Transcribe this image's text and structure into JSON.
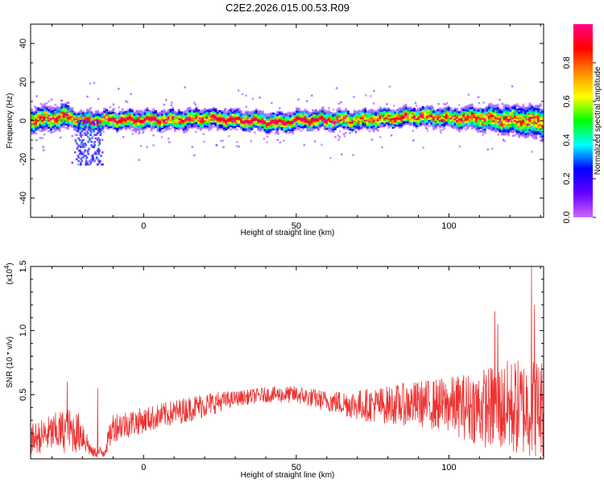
{
  "title": "C2E2.2026.015.00.53.R09",
  "chart_data": [
    {
      "type": "heatmap",
      "name": "spectrogram",
      "xlabel": "Height of straight line (km)",
      "ylabel": "Frequency (Hz)",
      "xlim": [
        -37,
        131
      ],
      "ylim": [
        -50,
        50
      ],
      "xticks": [
        0,
        50,
        100
      ],
      "yticks": [
        -40,
        -20,
        0,
        20,
        40
      ],
      "xtick_labels": [
        "0",
        "50",
        "100"
      ],
      "ytick_labels": [
        "-40",
        "-20",
        "0",
        "20",
        "40"
      ],
      "colorbar": {
        "label": "Normalized spectral amplitude",
        "range": [
          0,
          1
        ],
        "ticks": [
          0.0,
          0.2,
          0.4,
          0.6,
          0.8
        ],
        "tick_labels": [
          "0.0",
          "0.2",
          "0.4",
          "0.6",
          "0.8"
        ],
        "colors": [
          "#cc66ff",
          "#6600ff",
          "#0000ff",
          "#00ffff",
          "#00ff00",
          "#ffff00",
          "#ff8800",
          "#ff0000",
          "#ff0088"
        ]
      },
      "ridge_center_hz": [
        [
          -37,
          0
        ],
        [
          -30,
          1
        ],
        [
          -25,
          2
        ],
        [
          -20,
          -1
        ],
        [
          -15,
          0
        ],
        [
          -10,
          0
        ],
        [
          0,
          0
        ],
        [
          10,
          0
        ],
        [
          20,
          1
        ],
        [
          30,
          0
        ],
        [
          40,
          -1
        ],
        [
          45,
          -1.5
        ],
        [
          50,
          0
        ],
        [
          60,
          0
        ],
        [
          70,
          0
        ],
        [
          80,
          1
        ],
        [
          90,
          2
        ],
        [
          100,
          1
        ],
        [
          110,
          1
        ],
        [
          120,
          0
        ],
        [
          131,
          -1
        ]
      ],
      "features": [
        {
          "x_start": -22,
          "x_end": -14,
          "freq_min": -23,
          "freq_max": 0,
          "note": "downward streak"
        }
      ]
    },
    {
      "type": "line",
      "name": "snr",
      "xlabel": "Height of straight line (km)",
      "ylabel": "SNR (10 * v/v)",
      "ylabel_extra": "(x10",
      "ylabel_exp": "4",
      "ylabel_close": ")",
      "xlim": [
        -37,
        131
      ],
      "ylim": [
        0,
        1.5
      ],
      "xticks": [
        0,
        50,
        100
      ],
      "yticks": [
        0.5,
        1.0,
        1.5
      ],
      "xtick_labels": [
        "0",
        "50",
        "100"
      ],
      "ytick_labels": [
        "0.5",
        "1.0",
        "1.5"
      ],
      "color": "#ee3333",
      "envelope": [
        {
          "x": -37,
          "mean": 0.15,
          "spread": 0.12
        },
        {
          "x": -30,
          "mean": 0.2,
          "spread": 0.15
        },
        {
          "x": -25,
          "mean": 0.22,
          "spread": 0.18
        },
        {
          "x": -20,
          "mean": 0.2,
          "spread": 0.15
        },
        {
          "x": -17,
          "mean": 0.05,
          "spread": 0.04
        },
        {
          "x": -13,
          "mean": 0.05,
          "spread": 0.05
        },
        {
          "x": -10,
          "mean": 0.25,
          "spread": 0.12
        },
        {
          "x": 0,
          "mean": 0.3,
          "spread": 0.1
        },
        {
          "x": 10,
          "mean": 0.36,
          "spread": 0.1
        },
        {
          "x": 20,
          "mean": 0.42,
          "spread": 0.1
        },
        {
          "x": 30,
          "mean": 0.47,
          "spread": 0.06
        },
        {
          "x": 40,
          "mean": 0.5,
          "spread": 0.06
        },
        {
          "x": 50,
          "mean": 0.5,
          "spread": 0.07
        },
        {
          "x": 60,
          "mean": 0.45,
          "spread": 0.08
        },
        {
          "x": 70,
          "mean": 0.42,
          "spread": 0.12
        },
        {
          "x": 80,
          "mean": 0.42,
          "spread": 0.15
        },
        {
          "x": 90,
          "mean": 0.43,
          "spread": 0.18
        },
        {
          "x": 100,
          "mean": 0.42,
          "spread": 0.22
        },
        {
          "x": 110,
          "mean": 0.4,
          "spread": 0.3
        },
        {
          "x": 120,
          "mean": 0.4,
          "spread": 0.38
        },
        {
          "x": 131,
          "mean": 0.4,
          "spread": 0.4
        }
      ],
      "peaks": [
        {
          "x": 127,
          "y": 1.55
        },
        {
          "x": 128,
          "y": 1.2
        },
        {
          "x": 115,
          "y": 1.15
        },
        {
          "x": 116,
          "y": 1.05
        },
        {
          "x": -25,
          "y": 0.6
        },
        {
          "x": -15,
          "y": 0.55
        }
      ]
    }
  ]
}
